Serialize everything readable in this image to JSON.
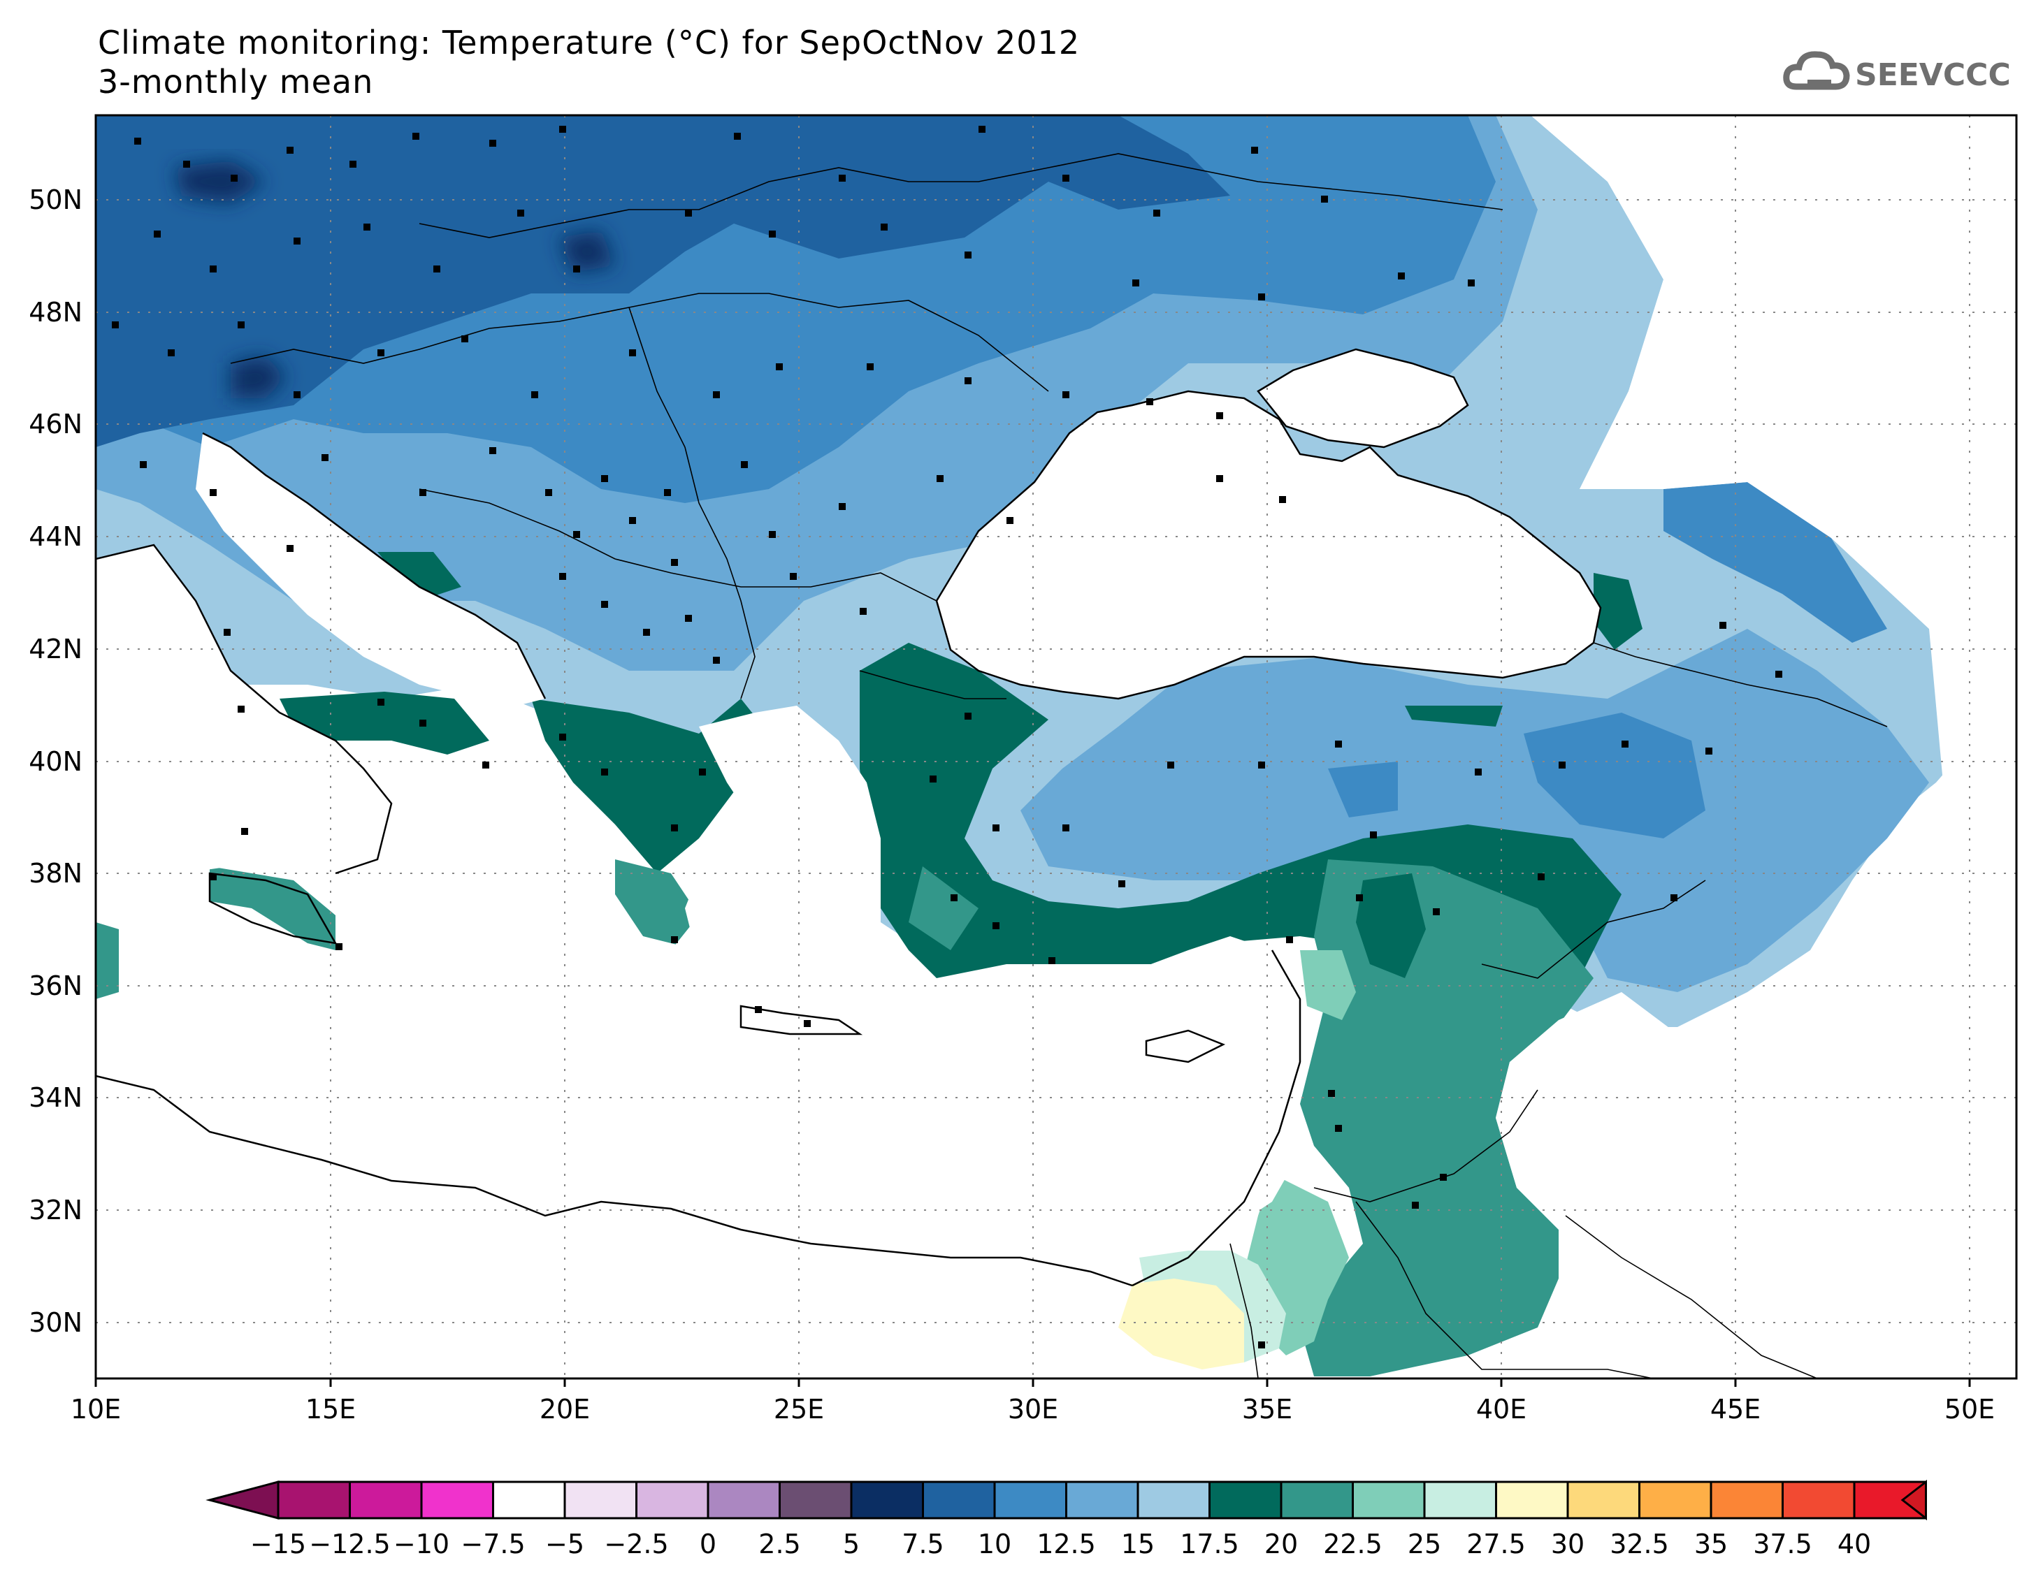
{
  "header": {
    "title": "Climate monitoring: Temperature (°C) for SepOctNov 2012",
    "subtitle": "3-monthly mean",
    "logo_text": "SEEVCCC"
  },
  "map": {
    "lon_range": [
      10,
      51
    ],
    "lat_range": [
      29,
      51.5
    ],
    "lon_ticks": [
      "10E",
      "15E",
      "20E",
      "25E",
      "30E",
      "35E",
      "40E",
      "45E",
      "50E"
    ],
    "lat_ticks": [
      "30N",
      "32N",
      "34N",
      "36N",
      "38N",
      "40N",
      "42N",
      "44N",
      "46N",
      "48N",
      "50N"
    ],
    "gridlines": true
  },
  "colorbar": {
    "labels": [
      "−15",
      "−12.5",
      "−10",
      "−7.5",
      "−5",
      "−2.5",
      "0",
      "2.5",
      "5",
      "7.5",
      "10",
      "12.5",
      "15",
      "17.5",
      "20",
      "22.5",
      "25",
      "27.5",
      "30",
      "32.5",
      "35",
      "37.5",
      "40"
    ],
    "colors": [
      "#7d0f52",
      "#a8136f",
      "#cc1a9b",
      "#f032cc",
      "#ffffff",
      "#f1e2f3",
      "#d9b6e1",
      "#ab87c1",
      "#6b4e72",
      "#0b2e63",
      "#1f62a0",
      "#3d8ac4",
      "#69a9d6",
      "#9ecae3",
      "#016a5c",
      "#33978a",
      "#7fceb8",
      "#c8eee2",
      "#fef9c5",
      "#fdd97b",
      "#feaf47",
      "#fb8536",
      "#f24a32",
      "#e9192a",
      "#d11822"
    ]
  }
}
